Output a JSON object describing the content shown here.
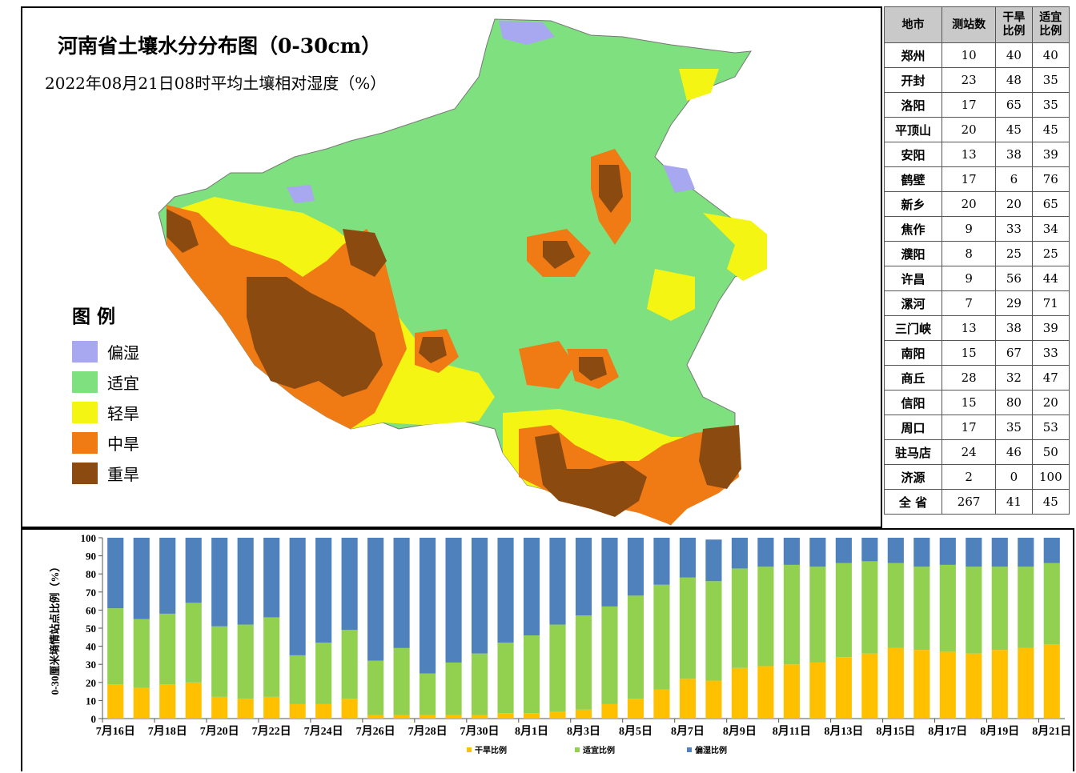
{
  "map": {
    "title": "河南省土壤水分分布图（0-30cm）",
    "subtitle": "2022年08月21日08时平均土壤相对湿度（%）",
    "legend_title": "图 例",
    "legend": [
      {
        "label": "偏湿",
        "color": "#a8a8f0"
      },
      {
        "label": "适宜",
        "color": "#7ee07e"
      },
      {
        "label": "轻旱",
        "color": "#f5f514"
      },
      {
        "label": "中旱",
        "color": "#f07a14"
      },
      {
        "label": "重旱",
        "color": "#8b4a10"
      }
    ]
  },
  "table": {
    "headers": [
      "地市",
      "测站数",
      "干旱\n比例",
      "适宜\n比例"
    ],
    "rows": [
      [
        "郑州",
        "10",
        "40",
        "40"
      ],
      [
        "开封",
        "23",
        "48",
        "35"
      ],
      [
        "洛阳",
        "17",
        "65",
        "35"
      ],
      [
        "平顶山",
        "20",
        "45",
        "45"
      ],
      [
        "安阳",
        "13",
        "38",
        "39"
      ],
      [
        "鹤壁",
        "17",
        "6",
        "76"
      ],
      [
        "新乡",
        "20",
        "20",
        "65"
      ],
      [
        "焦作",
        "9",
        "33",
        "34"
      ],
      [
        "濮阳",
        "8",
        "25",
        "25"
      ],
      [
        "许昌",
        "9",
        "56",
        "44"
      ],
      [
        "漯河",
        "7",
        "29",
        "71"
      ],
      [
        "三门峡",
        "13",
        "38",
        "39"
      ],
      [
        "南阳",
        "15",
        "67",
        "33"
      ],
      [
        "商丘",
        "28",
        "32",
        "47"
      ],
      [
        "信阳",
        "15",
        "80",
        "20"
      ],
      [
        "周口",
        "17",
        "35",
        "53"
      ],
      [
        "驻马店",
        "24",
        "46",
        "50"
      ],
      [
        "济源",
        "2",
        "0",
        "100"
      ],
      [
        "全 省",
        "267",
        "41",
        "45"
      ]
    ]
  },
  "chart_data": {
    "type": "bar",
    "stacked": true,
    "ylabel": "0-30厘米墒情站点比例（%）",
    "ylim": [
      0,
      100
    ],
    "yticks": [
      0,
      10,
      20,
      30,
      40,
      50,
      60,
      70,
      80,
      90,
      100
    ],
    "xtick_labels": [
      "7月16日",
      "7月18日",
      "7月20日",
      "7月22日",
      "7月24日",
      "7月26日",
      "7月28日",
      "7月30日",
      "8月1日",
      "8月3日",
      "8月5日",
      "8月7日",
      "8月9日",
      "8月11日",
      "8月13日",
      "8月15日",
      "8月17日",
      "8月19日",
      "8月21日"
    ],
    "categories": [
      "7月16日",
      "7月17日",
      "7月18日",
      "7月19日",
      "7月20日",
      "7月21日",
      "7月22日",
      "7月23日",
      "7月24日",
      "7月25日",
      "7月26日",
      "7月27日",
      "7月28日",
      "7月29日",
      "7月30日",
      "7月31日",
      "8月1日",
      "8月2日",
      "8月3日",
      "8月4日",
      "8月5日",
      "8月6日",
      "8月7日",
      "8月8日",
      "8月9日",
      "8月10日",
      "8月11日",
      "8月12日",
      "8月13日",
      "8月14日",
      "8月15日",
      "8月16日",
      "8月17日",
      "8月18日",
      "8月19日",
      "8月20日",
      "8月21日"
    ],
    "series": [
      {
        "name": "干旱比例",
        "color": "#ffc000",
        "values": [
          19,
          17,
          19,
          20,
          12,
          11,
          12,
          8,
          8,
          11,
          2,
          2,
          2,
          2,
          2,
          3,
          3,
          4,
          5,
          8,
          11,
          16,
          22,
          21,
          28,
          29,
          30,
          31,
          34,
          36,
          39,
          38,
          37,
          36,
          38,
          39,
          41
        ]
      },
      {
        "name": "适宜比例",
        "color": "#92d050",
        "values": [
          42,
          38,
          39,
          44,
          39,
          41,
          44,
          27,
          34,
          38,
          30,
          37,
          23,
          29,
          34,
          39,
          43,
          48,
          52,
          54,
          57,
          58,
          56,
          55,
          55,
          55,
          55,
          53,
          52,
          51,
          47,
          46,
          48,
          48,
          46,
          45,
          45
        ]
      },
      {
        "name": "偏湿比例",
        "color": "#4f81bd",
        "values": [
          39,
          45,
          42,
          36,
          49,
          48,
          44,
          65,
          58,
          51,
          68,
          61,
          75,
          69,
          64,
          58,
          54,
          48,
          43,
          38,
          32,
          26,
          22,
          23,
          17,
          16,
          15,
          16,
          14,
          13,
          14,
          16,
          15,
          16,
          16,
          16,
          14
        ]
      }
    ],
    "legend_position": "bottom"
  }
}
